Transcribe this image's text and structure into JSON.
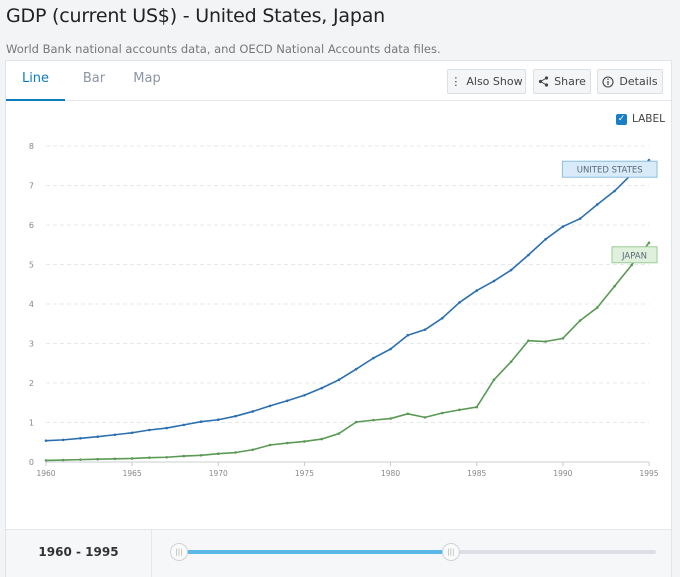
{
  "header": {
    "title": "GDP (current US$) - United States, Japan",
    "subtitle": "World Bank national accounts data, and OECD National Accounts data files."
  },
  "tabs": [
    {
      "label": "Line",
      "active": true
    },
    {
      "label": "Bar",
      "active": false
    },
    {
      "label": "Map",
      "active": false
    }
  ],
  "toolbar": {
    "also_show_label": "Also Show",
    "share_label": "Share",
    "details_label": "Details"
  },
  "label_toggle": {
    "label": "LABEL",
    "checked": true
  },
  "range": {
    "label": "1960 - 1995",
    "start_fraction": 0.0,
    "end_fraction": 0.57
  },
  "chart_data": {
    "type": "line",
    "title": "GDP (current US$) - United States, Japan",
    "xlabel": "",
    "ylabel": "",
    "xlim": [
      1960,
      1995
    ],
    "ylim": [
      0,
      8
    ],
    "x_ticks": [
      "1960",
      "1965",
      "1970",
      "1975",
      "1980",
      "1985",
      "1990",
      "1995"
    ],
    "y_ticks": [
      "0",
      "1",
      "2",
      "3",
      "4",
      "5",
      "6",
      "7",
      "8"
    ],
    "grid": true,
    "x": [
      1960,
      1961,
      1962,
      1963,
      1964,
      1965,
      1966,
      1967,
      1968,
      1969,
      1970,
      1971,
      1972,
      1973,
      1974,
      1975,
      1976,
      1977,
      1978,
      1979,
      1980,
      1981,
      1982,
      1983,
      1984,
      1985,
      1986,
      1987,
      1988,
      1989,
      1990,
      1991,
      1992,
      1993,
      1994,
      1995
    ],
    "series": [
      {
        "name": "UNITED STATES",
        "color": "#2b6fb0",
        "label_bg": "#d9ebf8",
        "label_border": "#8bbde0",
        "values": [
          0.54,
          0.56,
          0.6,
          0.64,
          0.69,
          0.74,
          0.81,
          0.86,
          0.94,
          1.02,
          1.07,
          1.16,
          1.28,
          1.42,
          1.55,
          1.69,
          1.87,
          2.08,
          2.35,
          2.63,
          2.86,
          3.21,
          3.35,
          3.64,
          4.04,
          4.34,
          4.58,
          4.86,
          5.24,
          5.64,
          5.96,
          6.16,
          6.52,
          6.86,
          7.29,
          7.64
        ]
      },
      {
        "name": "JAPAN",
        "color": "#5a9a55",
        "label_bg": "#dff0dc",
        "label_border": "#9ccb95",
        "values": [
          0.04,
          0.05,
          0.06,
          0.07,
          0.08,
          0.09,
          0.11,
          0.12,
          0.15,
          0.17,
          0.21,
          0.24,
          0.31,
          0.43,
          0.48,
          0.52,
          0.58,
          0.72,
          1.01,
          1.06,
          1.1,
          1.22,
          1.13,
          1.24,
          1.32,
          1.39,
          2.08,
          2.54,
          3.07,
          3.05,
          3.13,
          3.58,
          3.91,
          4.45,
          4.99,
          5.55
        ]
      }
    ]
  }
}
